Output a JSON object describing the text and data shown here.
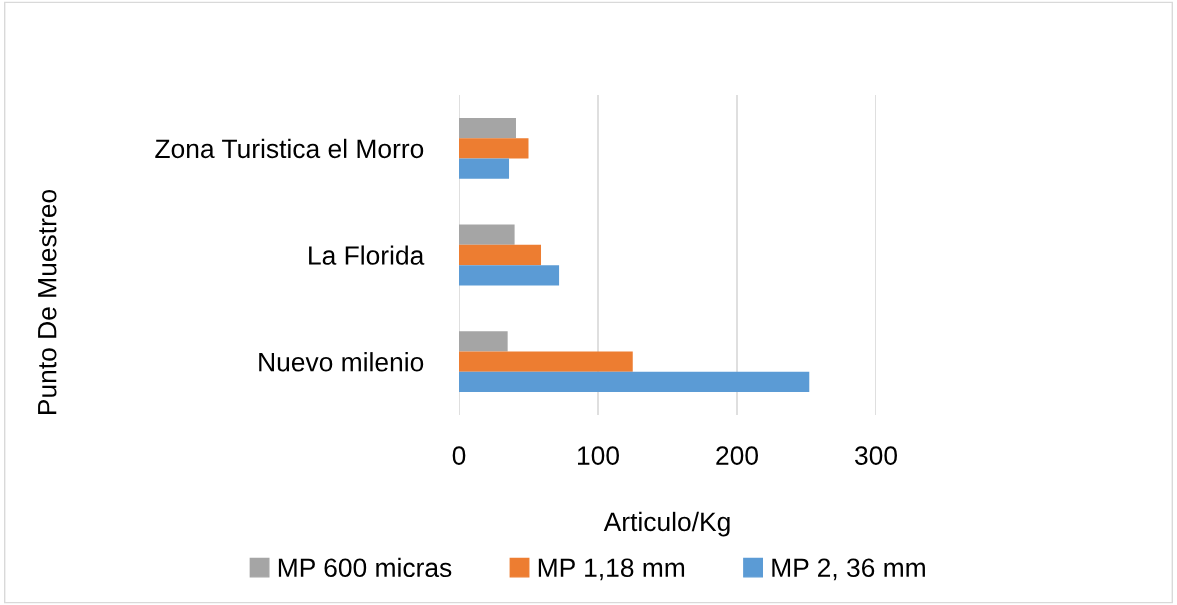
{
  "chart_data": {
    "type": "bar",
    "orientation": "horizontal",
    "xlabel": "Articulo/Kg",
    "ylabel": "Punto De Muestreo",
    "categories": [
      "Zona Turistica el Morro",
      "La Florida",
      "Nuevo milenio"
    ],
    "series": [
      {
        "name": "MP 600 micras",
        "color": "#a5a5a5",
        "values": [
          41,
          40,
          35
        ]
      },
      {
        "name": "MP 1,18 mm",
        "color": "#ed7d31",
        "values": [
          50,
          59,
          125
        ]
      },
      {
        "name": "MP 2, 36 mm",
        "color": "#5b9bd5",
        "values": [
          36,
          72,
          252
        ]
      }
    ],
    "xlim": [
      0,
      300
    ],
    "xticks": [
      0,
      100,
      200,
      300
    ],
    "grid": "x",
    "legend": "bottom"
  }
}
